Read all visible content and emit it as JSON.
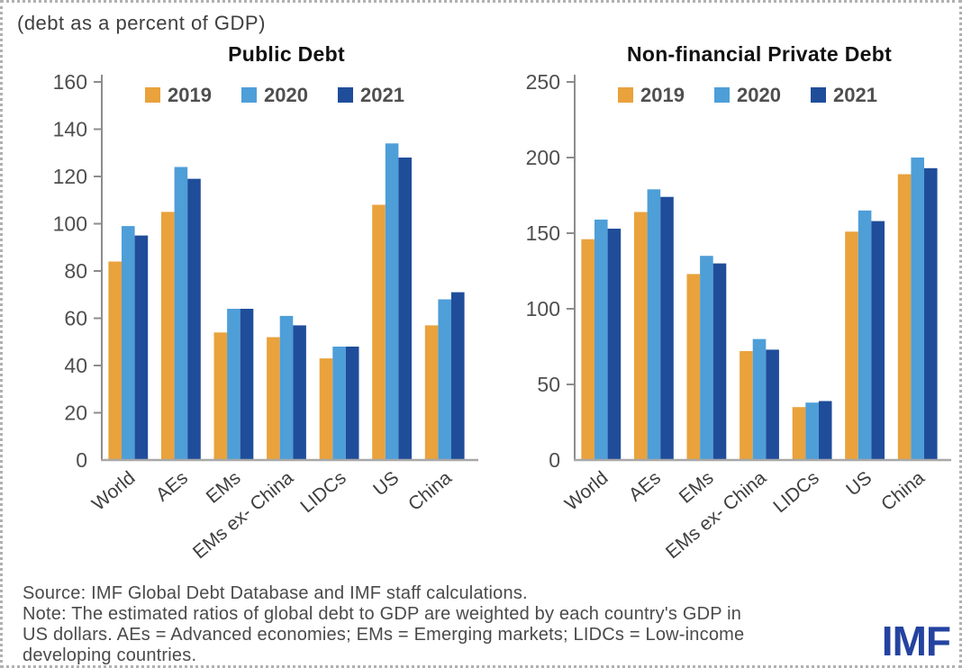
{
  "page": {
    "subtitle": "(debt as a percent of GDP)",
    "footer_lines": [
      "Source: IMF Global Debt Database and IMF staff calculations.",
      "Note: The estimated ratios of global debt to GDP are weighted by each country's GDP in",
      "US dollars. AEs = Advanced economies; EMs = Emerging markets; LIDCs = Low-income",
      "developing countries."
    ],
    "logo_text": "IMF"
  },
  "colors": {
    "series": [
      "#E9A23C",
      "#4E9ED8",
      "#1F4D9A"
    ],
    "axis": "#8c8c8c",
    "baseline": "#a8a8a8",
    "tick_text": "#4f4f4f",
    "xlabel_text": "#3f3f3f",
    "legend_text": "#4f4f4f",
    "logo_blue": "#2443a0"
  },
  "chart_data": [
    {
      "type": "bar",
      "title": "Public Debt",
      "subtitle_shared": "(debt as a percent of GDP)",
      "categories": [
        "World",
        "AEs",
        "EMs",
        "EMs ex- China",
        "LIDCs",
        "US",
        "China"
      ],
      "series": [
        {
          "name": "2019",
          "values": [
            84,
            105,
            54,
            52,
            43,
            108,
            57
          ]
        },
        {
          "name": "2020",
          "values": [
            99,
            124,
            64,
            61,
            48,
            134,
            68
          ]
        },
        {
          "name": "2021",
          "values": [
            95,
            119,
            64,
            57,
            48,
            128,
            71
          ]
        }
      ],
      "ylim": [
        0,
        160
      ],
      "ytick_step": 20,
      "grid": false,
      "legend_position": "top-inside"
    },
    {
      "type": "bar",
      "title": "Non-financial Private Debt",
      "subtitle_shared": "(debt as a percent of GDP)",
      "categories": [
        "World",
        "AEs",
        "EMs",
        "EMs ex- China",
        "LIDCs",
        "US",
        "China"
      ],
      "series": [
        {
          "name": "2019",
          "values": [
            146,
            164,
            123,
            72,
            35,
            151,
            189
          ]
        },
        {
          "name": "2020",
          "values": [
            159,
            179,
            135,
            80,
            38,
            165,
            200
          ]
        },
        {
          "name": "2021",
          "values": [
            153,
            174,
            130,
            73,
            39,
            158,
            193
          ]
        }
      ],
      "ylim": [
        0,
        250
      ],
      "ytick_step": 50,
      "grid": false,
      "legend_position": "top-inside"
    }
  ]
}
